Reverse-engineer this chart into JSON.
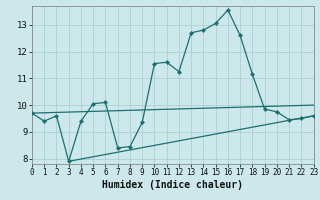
{
  "xlabel": "Humidex (Indice chaleur)",
  "bg_color": "#cce8ea",
  "grid_color": "#aad0d4",
  "line_color": "#1a7070",
  "xlim": [
    0,
    23
  ],
  "ylim": [
    7.8,
    13.7
  ],
  "yticks": [
    8,
    9,
    10,
    11,
    12,
    13
  ],
  "xticks": [
    0,
    1,
    2,
    3,
    4,
    5,
    6,
    7,
    8,
    9,
    10,
    11,
    12,
    13,
    14,
    15,
    16,
    17,
    18,
    19,
    20,
    21,
    22,
    23
  ],
  "line1_x": [
    0,
    1,
    2,
    3,
    4,
    5,
    6,
    7,
    8,
    9,
    10,
    11,
    12,
    13,
    14,
    15,
    16,
    17,
    18,
    19,
    20,
    21,
    22,
    23
  ],
  "line1_y": [
    9.7,
    9.4,
    9.6,
    7.9,
    9.4,
    10.05,
    10.1,
    8.4,
    8.45,
    9.35,
    11.55,
    11.6,
    11.25,
    12.7,
    12.8,
    13.05,
    13.55,
    12.6,
    11.15,
    9.85,
    9.75,
    9.45,
    9.5,
    9.6
  ],
  "line2_x": [
    0,
    23
  ],
  "line2_y": [
    9.7,
    10.0
  ],
  "line3_x": [
    3,
    23
  ],
  "line3_y": [
    7.9,
    9.6
  ],
  "xlabel_fontsize": 7,
  "tick_fontsize": 6.5,
  "xtick_fontsize": 5.5
}
